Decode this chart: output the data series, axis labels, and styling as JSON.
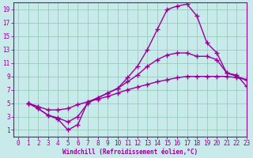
{
  "xlabel": "Windchill (Refroidissement éolien,°C)",
  "xlim": [
    -0.5,
    23
  ],
  "ylim": [
    0,
    20
  ],
  "xticks": [
    0,
    1,
    2,
    3,
    4,
    5,
    6,
    7,
    8,
    9,
    10,
    11,
    12,
    13,
    14,
    15,
    16,
    17,
    18,
    19,
    20,
    21,
    22,
    23
  ],
  "yticks": [
    1,
    3,
    5,
    7,
    9,
    11,
    13,
    15,
    17,
    19
  ],
  "bg_color": "#c8eaea",
  "line_color": "#990099",
  "grid_color": "#99ccbb",
  "curve1_x": [
    1,
    2,
    3,
    4,
    5,
    6,
    7,
    8,
    9,
    10,
    11,
    12,
    13,
    14,
    15,
    16,
    17,
    18,
    19,
    20,
    21,
    22,
    23
  ],
  "curve1_y": [
    5.0,
    4.2,
    3.2,
    2.6,
    1.0,
    1.8,
    5.2,
    5.8,
    6.5,
    7.2,
    8.8,
    10.5,
    13.0,
    16.0,
    19.0,
    19.5,
    19.8,
    18.0,
    14.0,
    12.5,
    9.5,
    9.2,
    7.5
  ],
  "curve2_x": [
    1,
    2,
    3,
    4,
    5,
    6,
    7,
    8,
    9,
    10,
    11,
    12,
    13,
    14,
    15,
    16,
    17,
    18,
    19,
    20,
    21,
    22,
    23
  ],
  "curve2_y": [
    5.0,
    4.2,
    3.2,
    2.8,
    2.2,
    3.0,
    5.0,
    5.8,
    6.5,
    7.2,
    8.2,
    9.2,
    10.5,
    11.5,
    12.2,
    12.5,
    12.5,
    12.0,
    12.0,
    11.5,
    9.5,
    9.0,
    8.5
  ],
  "curve3_x": [
    1,
    2,
    3,
    4,
    5,
    6,
    7,
    8,
    9,
    10,
    11,
    12,
    13,
    14,
    15,
    16,
    17,
    18,
    19,
    20,
    21,
    22,
    23
  ],
  "curve3_y": [
    5.0,
    4.5,
    4.0,
    4.0,
    4.2,
    4.8,
    5.2,
    5.6,
    6.0,
    6.5,
    7.0,
    7.4,
    7.8,
    8.2,
    8.5,
    8.8,
    9.0,
    9.0,
    9.0,
    9.0,
    9.0,
    8.8,
    8.5
  ],
  "marker": "+",
  "markersize": 4,
  "linewidth": 1.0,
  "tick_fontsize": 5.5,
  "xlabel_fontsize": 5.5
}
